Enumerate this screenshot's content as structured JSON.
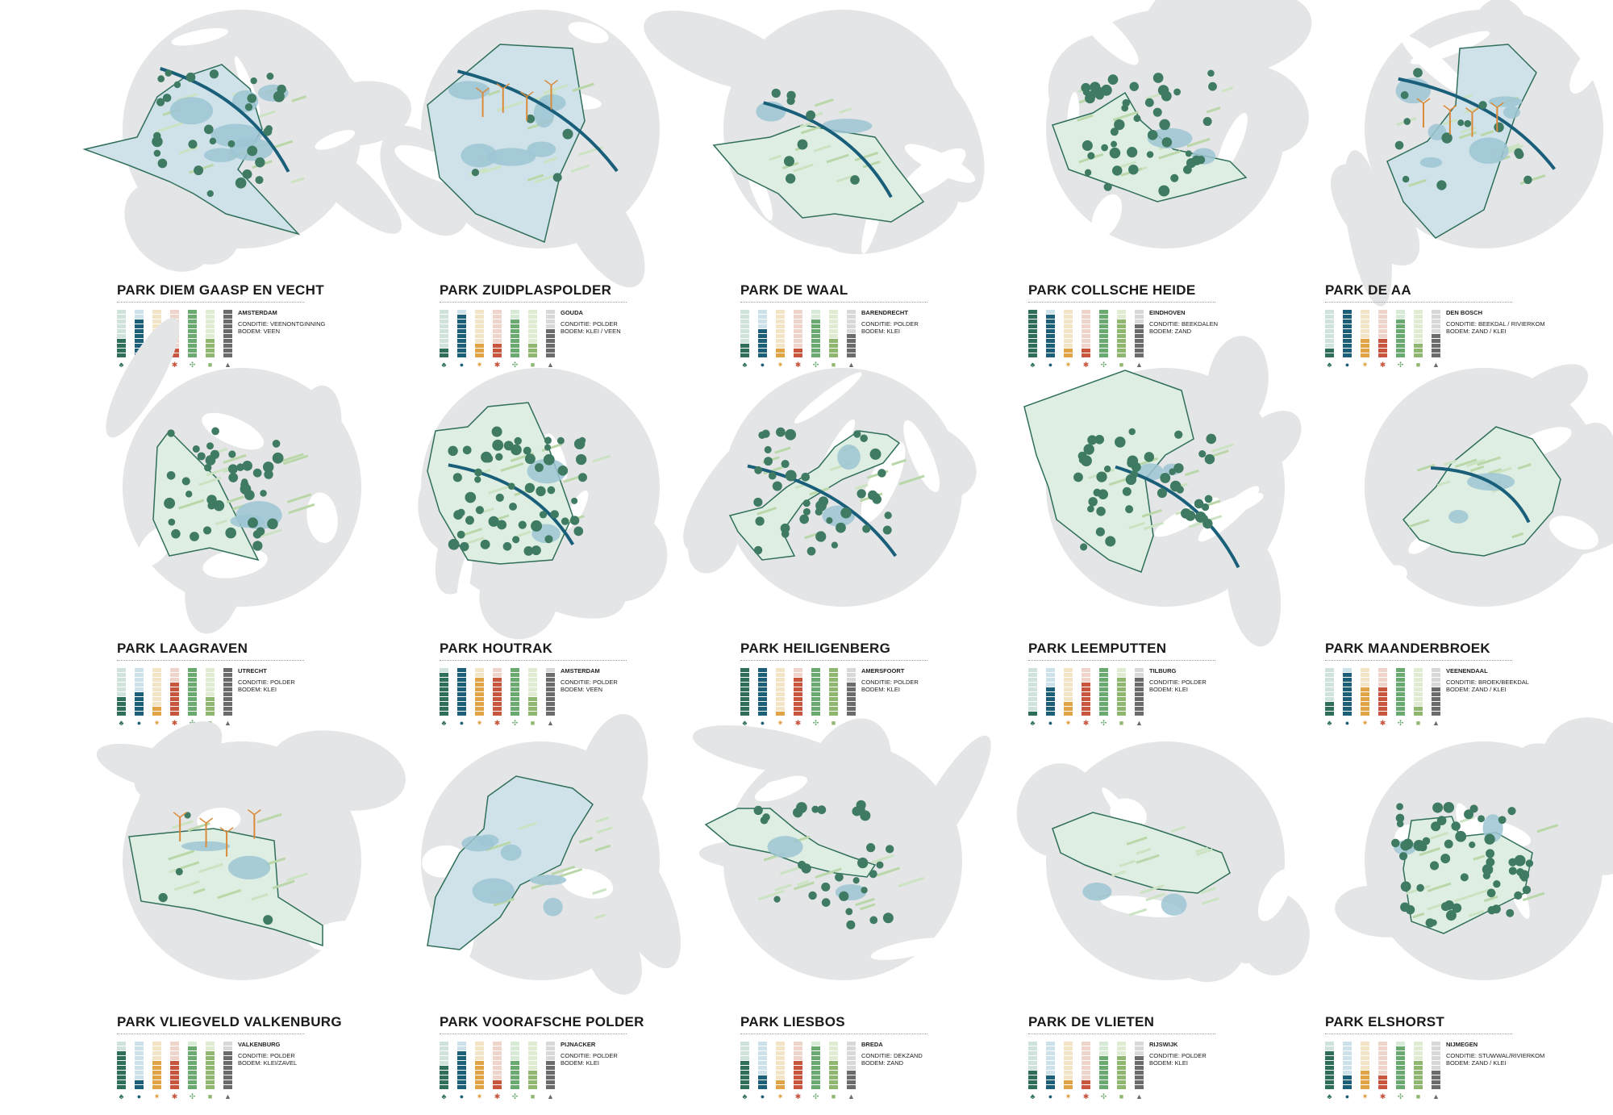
{
  "colors": {
    "background": "#ffffff",
    "context_land": "#e4e5e6",
    "park_fill": "#dfeee3",
    "park_stroke": "#2f6f5a",
    "water": "#9ec5d3",
    "river": "#1a5f7a",
    "tree": "#3f7b63",
    "turbine": "#d98b3a",
    "bar_colors": [
      "#2f6f5a",
      "#1d5e78",
      "#e0a447",
      "#c8553d",
      "#6aa96f",
      "#8fb770",
      "#6b6b6b"
    ],
    "bar_empty": [
      "#cfe3da",
      "#cde1ea",
      "#f4e4c6",
      "#efd4cc",
      "#d6ead6",
      "#e0ecd2",
      "#d8d8d8"
    ]
  },
  "legend_icons": [
    "tree-icon",
    "water-drop-icon",
    "sun-icon",
    "runner-icon",
    "wheat-icon",
    "tractor-icon",
    "cow-icon"
  ],
  "parks": [
    {
      "title": "PARK DIEM GAASP EN VECHT",
      "city": "AMSTERDAM",
      "conditie": "CONDITIE: VEENONTGINNING",
      "bodem": "BODEM: VEEN",
      "scores": [
        4,
        8,
        2,
        2,
        10,
        4,
        10
      ]
    },
    {
      "title": "PARK ZUIDPLASPOLDER",
      "city": "GOUDA",
      "conditie": "CONDITIE: POLDER",
      "bodem": "BODEM: KLEI / VEEN",
      "scores": [
        2,
        9,
        3,
        3,
        8,
        3,
        6
      ]
    },
    {
      "title": "PARK DE WAAL",
      "city": "BARENDRECHT",
      "conditie": "CONDITIE: POLDER",
      "bodem": "BODEM: KLEI",
      "scores": [
        3,
        6,
        2,
        2,
        8,
        4,
        5
      ]
    },
    {
      "title": "PARK COLLSCHE HEIDE",
      "city": "EINDHOVEN",
      "conditie": "CONDITIE: BEEKDALEN",
      "bodem": "BODEM: ZAND",
      "scores": [
        10,
        9,
        2,
        2,
        10,
        8,
        7
      ]
    },
    {
      "title": "PARK DE AA",
      "city": "DEN BOSCH",
      "conditie": "CONDITIE: BEEKDAL / RIVIERKOM",
      "bodem": "BODEM: ZAND / KLEI",
      "scores": [
        2,
        10,
        4,
        4,
        8,
        3,
        5
      ]
    },
    {
      "title": "PARK LAAGRAVEN",
      "city": "UTRECHT",
      "conditie": "CONDITIE: POLDER",
      "bodem": "BODEM: KLEI",
      "scores": [
        4,
        5,
        2,
        7,
        10,
        4,
        10
      ]
    },
    {
      "title": "PARK HOUTRAK",
      "city": "AMSTERDAM",
      "conditie": "CONDITIE: POLDER",
      "bodem": "BODEM:  VEEN",
      "scores": [
        9,
        10,
        8,
        8,
        10,
        4,
        9
      ]
    },
    {
      "title": "PARK HEILIGENBERG",
      "city": "AMERSFOORT",
      "conditie": "CONDITIE: POLDER",
      "bodem": "BODEM: KLEI",
      "scores": [
        10,
        10,
        1,
        8,
        10,
        10,
        7
      ]
    },
    {
      "title": "PARK LEEMPUTTEN",
      "city": "TILBURG",
      "conditie": "CONDITIE: POLDER",
      "bodem": "BODEM: KLEI",
      "scores": [
        1,
        6,
        3,
        7,
        10,
        8,
        8
      ]
    },
    {
      "title": "PARK MAANDERBROEK",
      "city": "VEENENDAAL",
      "conditie": "CONDITIE: BROEK/BEEKDAL",
      "bodem": "BODEM: ZAND / KLEI",
      "scores": [
        3,
        9,
        6,
        6,
        10,
        2,
        6
      ]
    },
    {
      "title": "PARK VLIEGVELD VALKENBURG",
      "city": "VALKENBURG",
      "conditie": "CONDITIE: POLDER",
      "bodem": "BODEM: KLEI/ZAVEL",
      "scores": [
        8,
        2,
        6,
        6,
        9,
        8,
        8
      ]
    },
    {
      "title": "PARK VOORAFSCHE POLDER",
      "city": "PIJNACKER",
      "conditie": "CONDITIE: POLDER",
      "bodem": "BODEM: KLEI",
      "scores": [
        5,
        8,
        6,
        2,
        6,
        4,
        6
      ]
    },
    {
      "title": "PARK LIESBOS",
      "city": "BREDA",
      "conditie": "CONDITIE: DEKZAND",
      "bodem": "BODEM: ZAND",
      "scores": [
        6,
        3,
        2,
        6,
        9,
        6,
        4
      ]
    },
    {
      "title": "PARK DE VLIETEN",
      "city": "RIJSWIJK",
      "conditie": "CONDITIE: POLDER",
      "bodem": "BODEM: KLEI",
      "scores": [
        4,
        3,
        2,
        2,
        7,
        7,
        7
      ]
    },
    {
      "title": "PARK ELSHORST",
      "city": "NIJMEGEN",
      "conditie": "CONDITIE: STUWWAL/RIVIERKOM",
      "bodem": "BODEM: ZAND / KLEI",
      "scores": [
        8,
        3,
        4,
        3,
        9,
        6,
        4
      ]
    }
  ]
}
